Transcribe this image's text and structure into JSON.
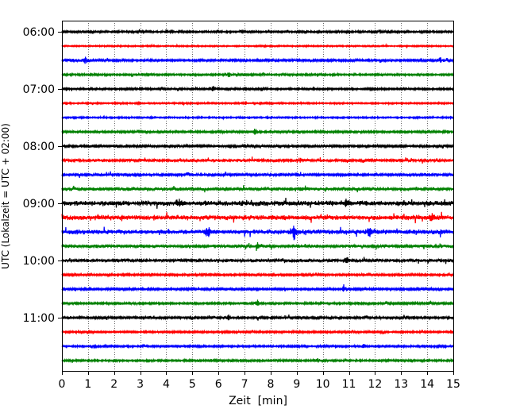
{
  "chart_data": {
    "type": "line",
    "chart_kind": "helicorder",
    "title": "",
    "xlabel": "Zeit  [min]",
    "ylabel": "UTC (Lokalzeit = UTC + 02:00)",
    "xlim": [
      0,
      15
    ],
    "x_ticks": [
      "0",
      "1",
      "2",
      "3",
      "4",
      "5",
      "6",
      "7",
      "8",
      "9",
      "10",
      "11",
      "12",
      "13",
      "14",
      "15"
    ],
    "x_gridlines": "dotted",
    "y_ticks": [
      "06:00",
      "07:00",
      "08:00",
      "09:00",
      "10:00",
      "11:00"
    ],
    "line_start_times": [
      "06:00",
      "06:15",
      "06:30",
      "06:45",
      "07:00",
      "07:15",
      "07:30",
      "07:45",
      "08:00",
      "08:15",
      "08:30",
      "08:45",
      "09:00",
      "09:15",
      "09:30",
      "09:45",
      "10:00",
      "10:15",
      "10:30",
      "10:45",
      "11:00",
      "11:15",
      "11:30",
      "11:45"
    ],
    "trace_colors": [
      "#000000",
      "#ff0000",
      "#0000ff",
      "#008000"
    ],
    "trace_amplitudes": [
      0.1,
      0.07,
      0.12,
      0.1,
      0.1,
      0.08,
      0.08,
      0.11,
      0.14,
      0.16,
      0.13,
      0.17,
      0.27,
      0.26,
      0.24,
      0.16,
      0.17,
      0.12,
      0.12,
      0.11,
      0.12,
      0.1,
      0.1,
      0.1
    ],
    "events": [
      {
        "line": 0,
        "x": 4.0,
        "amp": 0.3
      },
      {
        "line": 0,
        "x": 12.5,
        "amp": 0.2
      },
      {
        "line": 2,
        "x": 0.9,
        "amp": 0.4
      },
      {
        "line": 2,
        "x": 14.5,
        "amp": 0.3
      },
      {
        "line": 3,
        "x": 6.4,
        "amp": 0.3
      },
      {
        "line": 4,
        "x": 5.8,
        "amp": 0.4
      },
      {
        "line": 7,
        "x": 7.4,
        "amp": 0.4
      },
      {
        "line": 9,
        "x": 9.1,
        "amp": 0.3
      },
      {
        "line": 12,
        "x": 4.5,
        "amp": 0.4
      },
      {
        "line": 12,
        "x": 10.9,
        "amp": 0.5
      },
      {
        "line": 13,
        "x": 14.2,
        "amp": 0.4
      },
      {
        "line": 14,
        "x": 5.6,
        "amp": 0.6
      },
      {
        "line": 14,
        "x": 8.9,
        "amp": 1.0
      },
      {
        "line": 14,
        "x": 11.8,
        "amp": 0.5
      },
      {
        "line": 15,
        "x": 7.5,
        "amp": 0.5
      },
      {
        "line": 16,
        "x": 10.9,
        "amp": 0.4
      },
      {
        "line": 18,
        "x": 10.8,
        "amp": 0.5
      },
      {
        "line": 19,
        "x": 7.5,
        "amp": 0.4
      },
      {
        "line": 20,
        "x": 6.4,
        "amp": 0.4
      },
      {
        "line": 22,
        "x": 11.6,
        "amp": 0.4
      },
      {
        "line": 23,
        "x": 9.8,
        "amp": 0.3
      }
    ]
  }
}
